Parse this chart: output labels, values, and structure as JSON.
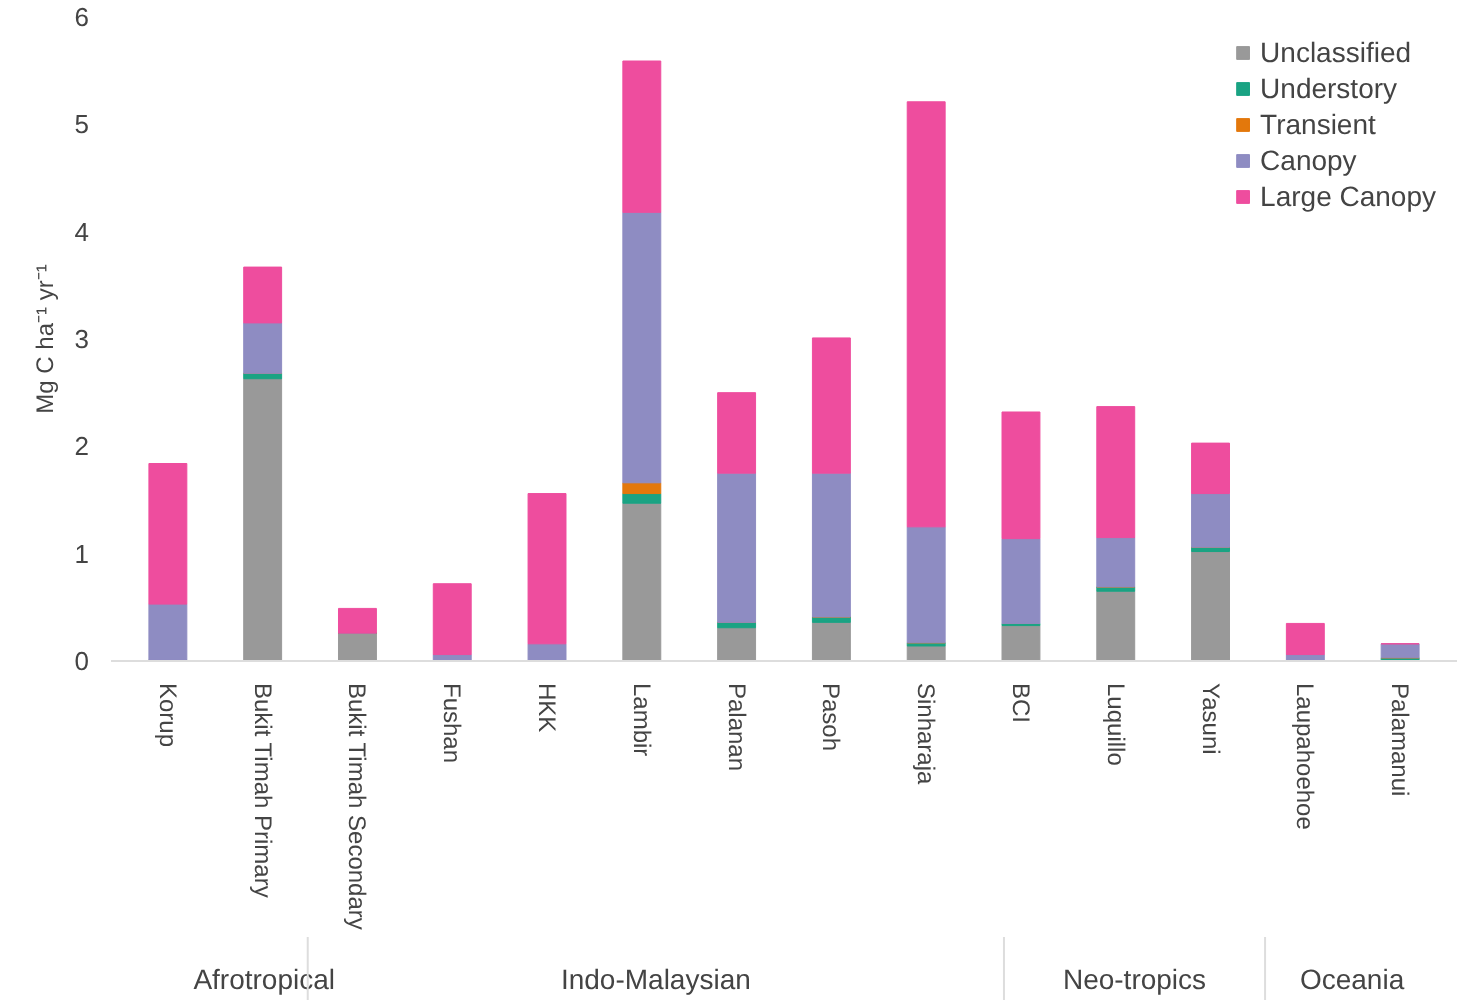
{
  "chart_data": {
    "type": "bar",
    "stacked": true,
    "ylabel": "Mg C ha⁻¹ yr⁻¹",
    "categories": [
      "Korup",
      "Bukit Timah Primary",
      "Bukit Timah Secondary",
      "Fushan",
      "HKK",
      "Lambir",
      "Palanan",
      "Pasoh",
      "Sinharaja",
      "BCI",
      "Luquillo",
      "Yasuni",
      "Laupahoehoe",
      "Palamanui"
    ],
    "series": [
      {
        "name": "Unclassified",
        "color": "#999999",
        "values": [
          0.0,
          2.63,
          0.26,
          0.0,
          0.0,
          1.47,
          0.31,
          0.36,
          0.14,
          0.33,
          0.65,
          1.02,
          0.0,
          0.0
        ]
      },
      {
        "name": "Understory",
        "color": "#1aa383",
        "values": [
          0.01,
          0.05,
          0.0,
          0.0,
          0.0,
          0.09,
          0.05,
          0.05,
          0.03,
          0.02,
          0.04,
          0.04,
          0.0,
          0.03
        ]
      },
      {
        "name": "Transient",
        "color": "#e3780c",
        "values": [
          0.0,
          0.0,
          0.0,
          0.0,
          0.0,
          0.1,
          0.0,
          0.0,
          0.0,
          0.0,
          0.0,
          0.0,
          0.0,
          0.0
        ]
      },
      {
        "name": "Canopy",
        "color": "#8e8cc2",
        "values": [
          0.52,
          0.47,
          0.0,
          0.06,
          0.16,
          2.52,
          1.39,
          1.34,
          1.08,
          0.79,
          0.46,
          0.5,
          0.06,
          0.13
        ]
      },
      {
        "name": "Large Canopy",
        "color": "#ee4d9e",
        "values": [
          1.31,
          0.52,
          0.23,
          0.66,
          1.4,
          1.41,
          0.75,
          1.26,
          3.96,
          1.18,
          1.22,
          0.47,
          0.29,
          0.0
        ]
      }
    ],
    "ylim": [
      0,
      6
    ],
    "yticks": [
      0,
      1,
      2,
      3,
      4,
      5,
      6
    ],
    "grid": false,
    "legend": "top right",
    "annotations": [
      "Afrotropical",
      "Indo-Malaysian",
      "Neo-tropics",
      "Oceania"
    ]
  }
}
